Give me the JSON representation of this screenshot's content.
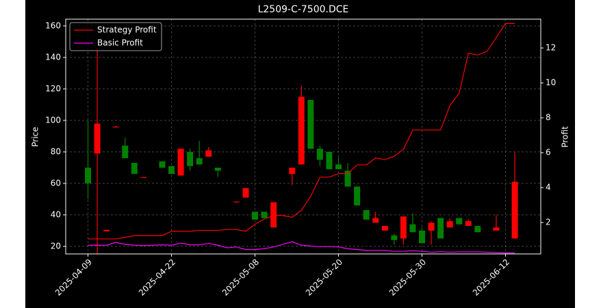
{
  "chart_data": {
    "type": "candlestick",
    "title": "L2509-C-7500.DCE",
    "ylabel": "Price",
    "y2label": "Profit",
    "categories": [
      "2025-04-09",
      null,
      null,
      null,
      null,
      null,
      null,
      null,
      null,
      "2025-04-22",
      null,
      null,
      null,
      null,
      null,
      null,
      null,
      null,
      "2025-05-08",
      null,
      null,
      null,
      null,
      null,
      null,
      null,
      null,
      "2025-05-20",
      null,
      null,
      null,
      null,
      null,
      null,
      null,
      null,
      "2025-05-30",
      null,
      null,
      null,
      null,
      null,
      null,
      null,
      null,
      "2025-06-12",
      null
    ],
    "open": [
      70,
      79,
      29.5,
      95.5,
      84,
      73,
      63.5,
      null,
      74,
      71,
      65,
      80,
      76,
      77,
      70,
      null,
      48,
      51,
      42,
      42,
      32,
      null,
      66,
      72,
      113,
      82,
      80,
      72,
      68,
      58,
      43,
      35,
      30,
      27,
      25,
      34,
      30,
      30,
      38,
      32,
      38,
      33,
      33,
      null,
      30,
      null,
      25
    ],
    "high": [
      100,
      146,
      30.5,
      96.5,
      89,
      73,
      64,
      null,
      74,
      71,
      82,
      82,
      87,
      83,
      70,
      null,
      48.5,
      57,
      42,
      42,
      48,
      null,
      70,
      122,
      113,
      84,
      80,
      77,
      73,
      58,
      43,
      42,
      33,
      28,
      39,
      41,
      32,
      36,
      38,
      38,
      38,
      37,
      33,
      null,
      40,
      null,
      80
    ],
    "low": [
      50,
      15,
      29.5,
      95.5,
      76,
      66,
      63.5,
      null,
      70,
      66,
      65,
      68,
      72,
      77,
      64,
      null,
      47.5,
      51,
      37,
      38,
      32,
      null,
      59,
      72,
      82,
      71,
      69,
      69,
      58,
      46,
      37,
      35,
      30,
      21,
      21,
      29,
      22,
      21,
      25,
      32,
      34,
      33,
      29,
      null,
      30,
      null,
      25
    ],
    "close": [
      60,
      98,
      30.5,
      96,
      76,
      66,
      64,
      null,
      70,
      66,
      82,
      71,
      72,
      81,
      68,
      null,
      48.5,
      57,
      37,
      38,
      48,
      null,
      70,
      115,
      82,
      75,
      69,
      69,
      58,
      46,
      37,
      38,
      33,
      24,
      39,
      29,
      22,
      35,
      25,
      36,
      34,
      36,
      29,
      null,
      32,
      null,
      61
    ],
    "up_color": "#ff0000",
    "down_color": "#008000",
    "series": [
      {
        "name": "Strategy Profit",
        "color": "#ff0000",
        "axis": "y2",
        "values": [
          1.06,
          1.06,
          1.06,
          1.06,
          1.15,
          1.25,
          1.25,
          1.25,
          1.25,
          1.5,
          1.5,
          1.5,
          1.55,
          1.55,
          1.55,
          1.6,
          1.6,
          1.5,
          1.9,
          2.2,
          2.4,
          2.4,
          2.3,
          2.7,
          3.5,
          4.6,
          4.6,
          4.8,
          4.8,
          5.3,
          5.3,
          5.7,
          5.6,
          5.8,
          6.2,
          7.3,
          7.3,
          7.3,
          7.3,
          8.7,
          9.4,
          11.7,
          11.6,
          11.8,
          12.6,
          13.4,
          13.4
        ]
      },
      {
        "name": "Basic Profit",
        "color": "#ff00ff",
        "axis": "y2",
        "values": [
          0.7,
          0.7,
          0.7,
          0.86,
          0.75,
          0.7,
          0.68,
          0.7,
          0.72,
          0.7,
          0.82,
          0.72,
          0.72,
          0.8,
          0.7,
          0.55,
          0.6,
          0.45,
          0.45,
          0.5,
          0.6,
          0.75,
          0.9,
          0.7,
          0.65,
          0.62,
          0.62,
          0.6,
          0.5,
          0.45,
          0.4,
          0.4,
          0.4,
          0.35,
          0.35,
          0.38,
          0.35,
          0.3,
          0.33,
          0.3,
          0.32,
          0.32,
          0.32,
          0.3,
          0.28,
          0.26,
          0.26
        ]
      }
    ],
    "xlim": [
      -2.4,
      48.8
    ],
    "ylim": [
      15.2,
      164.3
    ],
    "yticks": [
      20,
      40,
      60,
      80,
      100,
      120,
      140,
      160
    ],
    "y2lim": [
      0.2,
      13.65
    ],
    "y2ticks": [
      2,
      4,
      6,
      8,
      10,
      12
    ],
    "grid": true,
    "legend": "upper left"
  }
}
